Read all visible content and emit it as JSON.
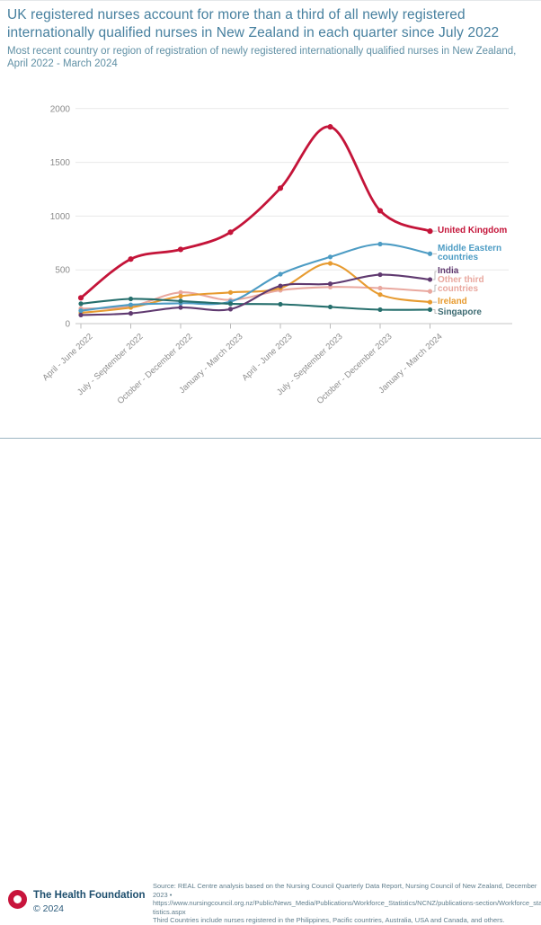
{
  "header": {
    "title": "UK registered nurses account for more than a third of all newly registered internationally qualified nurses in New Zealand in each quarter since July 2022",
    "subtitle": "Most recent country or region of registration of newly registered internationally qualified nurses in New Zealand, April 2022 - March 2024"
  },
  "chart_data": {
    "type": "line",
    "title": "UK registered nurses account for more than a third of all newly registered internationally qualified nurses in New Zealand in each quarter since July 2022",
    "subtitle": "Most recent country or region of registration of newly registered internationally qualified nurses in New Zealand, April 2022 - March 2024",
    "categories": [
      "April - June 2022",
      "July - September 2022",
      "October - December 2022",
      "January - March 2023",
      "April - June 2023",
      "July - September 2023",
      "October - December 2023",
      "January - March 2024"
    ],
    "series": [
      {
        "name": "United Kingdom",
        "label": "United Kingdom",
        "color": "#c41439",
        "values": [
          240,
          600,
          690,
          850,
          1260,
          1830,
          1050,
          860
        ]
      },
      {
        "name": "Middle Eastern countries",
        "label": "Middle Eastern\ncountries",
        "color": "#4d9cc4",
        "values": [
          120,
          175,
          190,
          205,
          460,
          620,
          740,
          650
        ]
      },
      {
        "name": "India",
        "label": "India",
        "color": "#603a70",
        "values": [
          80,
          95,
          150,
          135,
          350,
          370,
          455,
          410
        ]
      },
      {
        "name": "Other third countries",
        "label": "Other third\ncountries",
        "color": "#e9a89f",
        "values": [
          140,
          160,
          290,
          220,
          310,
          340,
          330,
          300
        ]
      },
      {
        "name": "Ireland",
        "label": "Ireland",
        "color": "#e79b30",
        "values": [
          100,
          150,
          255,
          290,
          330,
          560,
          270,
          200
        ]
      },
      {
        "name": "Singapore",
        "label": "Singapore",
        "color": "#266f6d",
        "label_color": "#3d6b72",
        "values": [
          185,
          230,
          210,
          185,
          180,
          155,
          130,
          130
        ]
      }
    ],
    "ylim": [
      0,
      2000
    ],
    "yticks": [
      0,
      500,
      1000,
      1500,
      2000
    ],
    "xlabel": "",
    "ylabel": "",
    "grid": "horizontal",
    "legend_position": "right-of-line-ends"
  },
  "footer": {
    "brand": "The Health Foundation",
    "copyright": "© 2024",
    "logo_color": "#c8153c",
    "source_lines": [
      "Source: REAL Centre analysis based on the Nursing Council Quarterly Data Report, Nursing Council of New Zealand, December 2023 •",
      "https://www.nursingcouncil.org.nz/Public/News_Media/Publications/Workforce_Statistics/NCNZ/publications-section/Workforce_statistics.aspx",
      "Third Countries include nurses registered in the Philippines, Pacific countries, Australia, USA and Canada, and others."
    ]
  },
  "colors": {
    "title_text": "#47809f",
    "subtitle_text": "#6090a5",
    "axis_text": "#8c8c8c",
    "gridline": "#e9e9e9",
    "axis_line": "#c6c6c6"
  }
}
